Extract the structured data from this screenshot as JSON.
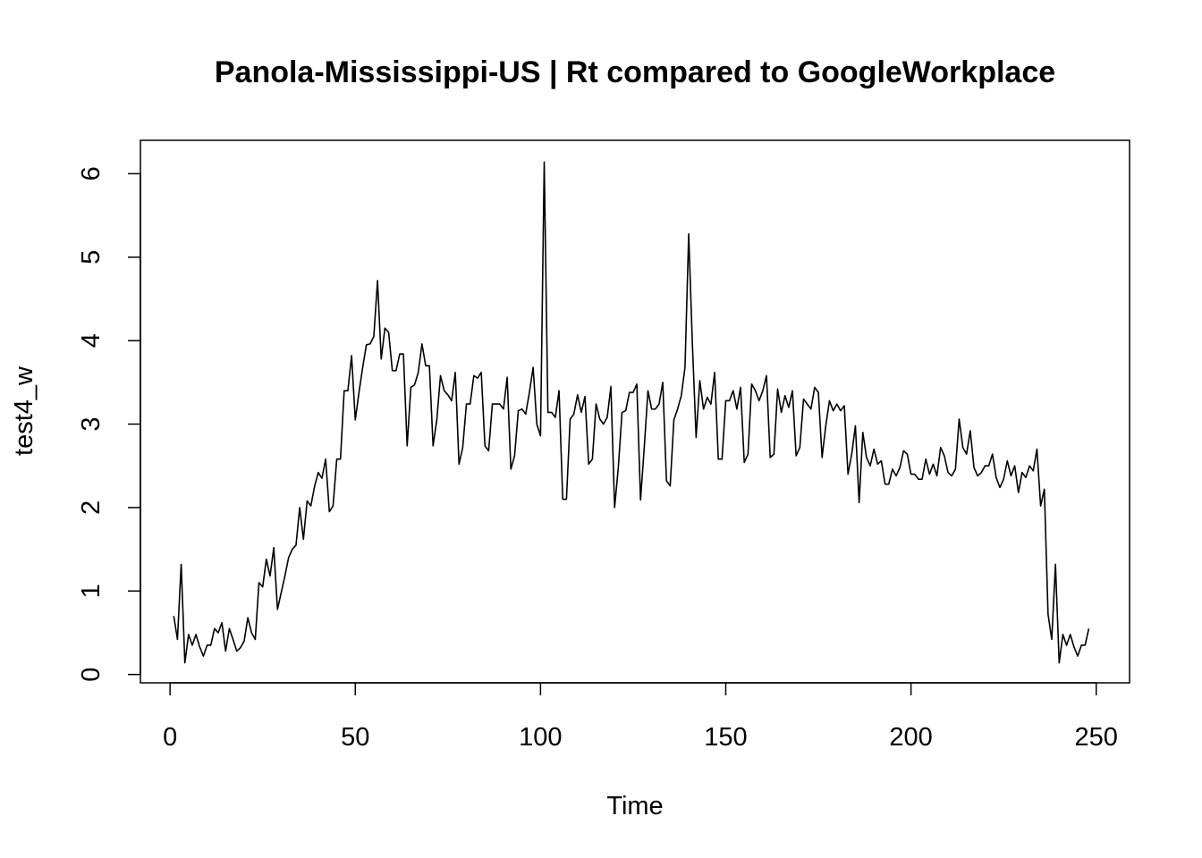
{
  "chart_data": {
    "type": "line",
    "title": "Panola-Mississippi-US | Rt compared to GoogleWorkplace",
    "xlabel": "Time",
    "ylabel": "test4_w",
    "xlim": [
      -8,
      259
    ],
    "ylim": [
      -0.1,
      6.4
    ],
    "xticks": [
      0,
      50,
      100,
      150,
      200,
      250
    ],
    "yticks": [
      0,
      1,
      2,
      3,
      4,
      5,
      6
    ],
    "grid": false,
    "legend": "none",
    "series": [
      {
        "color": "#000000",
        "x": [
          1,
          2,
          3,
          4,
          5,
          6,
          7,
          8,
          9,
          10,
          11,
          12,
          13,
          14,
          15,
          16,
          17,
          18,
          19,
          20,
          21,
          22,
          23,
          24,
          25,
          26,
          27,
          28,
          29,
          30,
          31,
          32,
          33,
          34,
          35,
          36,
          37,
          38,
          39,
          40,
          41,
          42,
          43,
          44,
          45,
          46,
          47,
          48,
          49,
          50,
          51,
          52,
          53,
          54,
          55,
          56,
          57,
          58,
          59,
          60,
          61,
          62,
          63,
          64,
          65,
          66,
          67,
          68,
          69,
          70,
          71,
          72,
          73,
          74,
          75,
          76,
          77,
          78,
          79,
          80,
          81,
          82,
          83,
          84,
          85,
          86,
          87,
          88,
          89,
          90,
          91,
          92,
          93,
          94,
          95,
          96,
          97,
          98,
          99,
          100,
          101,
          102,
          103,
          104,
          105,
          106,
          107,
          108,
          109,
          110,
          111,
          112,
          113,
          114,
          115,
          116,
          117,
          118,
          119,
          120,
          121,
          122,
          123,
          124,
          125,
          126,
          127,
          128,
          129,
          130,
          131,
          132,
          133,
          134,
          135,
          136,
          137,
          138,
          139,
          140,
          141,
          142,
          143,
          144,
          145,
          146,
          147,
          148,
          149,
          150,
          151,
          152,
          153,
          154,
          155,
          156,
          157,
          158,
          159,
          160,
          161,
          162,
          163,
          164,
          165,
          166,
          167,
          168,
          169,
          170,
          171,
          172,
          173,
          174,
          175,
          176,
          177,
          178,
          179,
          180,
          181,
          182,
          183,
          184,
          185,
          186,
          187,
          188,
          189,
          190,
          191,
          192,
          193,
          194,
          195,
          196,
          197,
          198,
          199,
          200,
          201,
          202,
          203,
          204,
          205,
          206,
          207,
          208,
          209,
          210,
          211,
          212,
          213,
          214,
          215,
          216,
          217,
          218,
          219,
          220,
          221,
          222,
          223,
          224,
          225,
          226,
          227,
          228,
          229,
          230,
          231,
          232,
          233,
          234,
          235,
          236,
          237,
          238,
          239,
          240,
          241,
          242,
          243,
          244,
          245,
          246,
          247,
          248
        ],
        "y": [
          0.7,
          0.42,
          1.32,
          0.14,
          0.48,
          0.35,
          0.48,
          0.33,
          0.22,
          0.35,
          0.35,
          0.55,
          0.5,
          0.62,
          0.28,
          0.55,
          0.42,
          0.28,
          0.32,
          0.4,
          0.68,
          0.5,
          0.42,
          1.1,
          1.05,
          1.38,
          1.18,
          1.52,
          0.78,
          0.98,
          1.18,
          1.4,
          1.5,
          1.55,
          2.0,
          1.62,
          2.08,
          2.02,
          2.25,
          2.42,
          2.35,
          2.58,
          1.95,
          2.02,
          2.58,
          2.58,
          3.4,
          3.4,
          3.82,
          3.05,
          3.38,
          3.68,
          3.95,
          3.96,
          4.05,
          4.72,
          3.78,
          4.15,
          4.1,
          3.64,
          3.64,
          3.84,
          3.84,
          2.74,
          3.44,
          3.47,
          3.62,
          3.96,
          3.7,
          3.7,
          2.74,
          3.05,
          3.58,
          3.4,
          3.35,
          3.28,
          3.62,
          2.52,
          2.72,
          3.24,
          3.24,
          3.58,
          3.55,
          3.62,
          2.74,
          2.68,
          3.24,
          3.24,
          3.24,
          3.18,
          3.56,
          2.46,
          2.62,
          3.16,
          3.18,
          3.12,
          3.38,
          3.68,
          3.0,
          2.86,
          6.14,
          3.14,
          3.14,
          3.08,
          3.4,
          2.1,
          2.1,
          3.06,
          3.12,
          3.35,
          3.14,
          3.33,
          2.52,
          2.58,
          3.24,
          3.06,
          3.0,
          3.08,
          3.45,
          2.0,
          2.48,
          3.14,
          3.16,
          3.38,
          3.38,
          3.48,
          2.09,
          2.72,
          3.4,
          3.18,
          3.18,
          3.24,
          3.5,
          2.32,
          2.26,
          3.05,
          3.18,
          3.34,
          3.68,
          5.28,
          3.95,
          2.84,
          3.52,
          3.18,
          3.32,
          3.24,
          3.62,
          2.58,
          2.58,
          3.28,
          3.28,
          3.4,
          3.18,
          3.44,
          2.54,
          2.64,
          3.48,
          3.4,
          3.28,
          3.4,
          3.58,
          2.6,
          2.64,
          3.42,
          3.14,
          3.34,
          3.2,
          3.4,
          2.62,
          2.72,
          3.3,
          3.24,
          3.18,
          3.44,
          3.38,
          2.6,
          2.98,
          3.28,
          3.16,
          3.24,
          3.16,
          3.22,
          2.4,
          2.64,
          2.98,
          2.06,
          2.9,
          2.6,
          2.5,
          2.7,
          2.52,
          2.56,
          2.28,
          2.28,
          2.46,
          2.38,
          2.48,
          2.68,
          2.64,
          2.4,
          2.4,
          2.34,
          2.34,
          2.58,
          2.4,
          2.52,
          2.38,
          2.72,
          2.62,
          2.42,
          2.38,
          2.46,
          3.06,
          2.72,
          2.64,
          2.92,
          2.48,
          2.38,
          2.42,
          2.5,
          2.5,
          2.64,
          2.36,
          2.24,
          2.34,
          2.56,
          2.38,
          2.5,
          2.18,
          2.42,
          2.36,
          2.5,
          2.44,
          2.7,
          2.02,
          2.22,
          0.72,
          0.42,
          1.32,
          0.14,
          0.48,
          0.35,
          0.48,
          0.33,
          0.22,
          0.35,
          0.35,
          0.55
        ]
      }
    ]
  }
}
